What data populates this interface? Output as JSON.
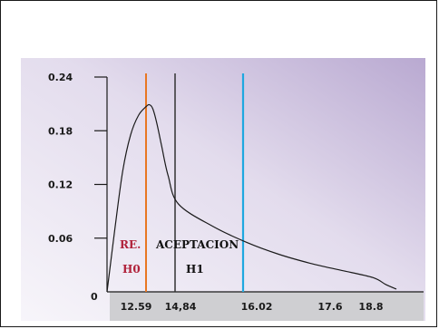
{
  "chart_data": {
    "type": "line",
    "title": "",
    "xlabel": "",
    "ylabel": "",
    "y_ticks": [
      "0.24",
      "0.18",
      "0.12",
      "0.06"
    ],
    "origin_label": "0",
    "x_ticks": [
      {
        "label": "12.59",
        "value": 12.59
      },
      {
        "label": "14,84",
        "value": 14.84
      },
      {
        "label": "16.02",
        "value": 16.02
      },
      {
        "label": "17.6",
        "value": 17.6
      },
      {
        "label": "18.8",
        "value": 18.8
      }
    ],
    "series": [
      {
        "x": [
          10.6,
          11.0,
          11.4,
          11.8,
          12.2,
          12.6,
          12.85,
          13.1,
          13.4,
          13.8,
          14.3,
          14.9,
          15.5,
          16.1,
          16.7,
          17.3,
          18.0,
          18.8,
          19.7,
          20.4
        ],
        "values": [
          0.0,
          0.07,
          0.135,
          0.175,
          0.197,
          0.207,
          0.209,
          0.205,
          0.19,
          0.163,
          0.13,
          0.098,
          0.073,
          0.055,
          0.042,
          0.032,
          0.024,
          0.016,
          0.008,
          0.003
        ]
      }
    ],
    "reference_lines": [
      {
        "x": 12.59,
        "color": "#e87722"
      },
      {
        "x": 14.84,
        "color": "#333333"
      },
      {
        "x": 16.02,
        "color": "#1fa8e0"
      }
    ],
    "annotations": {
      "rejection": {
        "label": "RE.",
        "color": "#b0213a"
      },
      "acceptance": {
        "label": "ACEPTACION",
        "color": "#111111"
      },
      "h0": {
        "label": "H0",
        "color": "#b0213a"
      },
      "h1": {
        "label": "H1",
        "color": "#111111"
      }
    },
    "background": {
      "from": "#f7f5fa",
      "to": "#b9a9d1"
    }
  }
}
